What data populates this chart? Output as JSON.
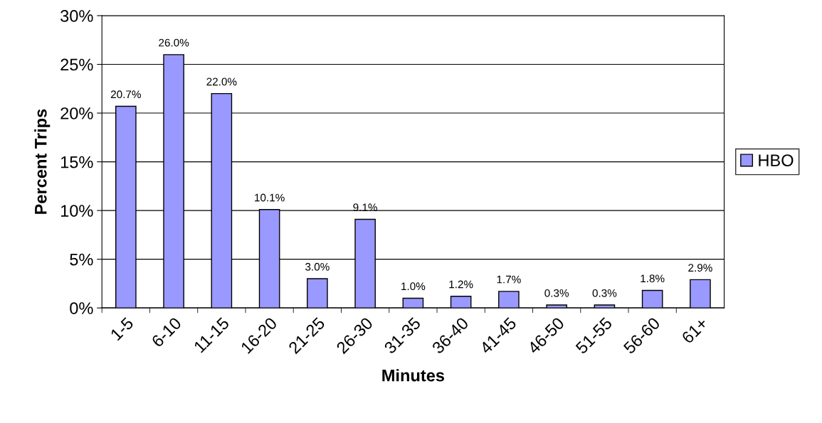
{
  "chart_data": {
    "type": "bar",
    "xlabel": "Minutes",
    "ylabel": "Percent Trips",
    "categories": [
      "1-5",
      "6-10",
      "11-15",
      "16-20",
      "21-25",
      "26-30",
      "31-35",
      "36-40",
      "41-45",
      "46-50",
      "51-55",
      "56-60",
      "61+"
    ],
    "series": [
      {
        "name": "HBO",
        "color": "#9999ff",
        "values": [
          20.7,
          26.0,
          22.0,
          10.1,
          3.0,
          9.1,
          1.0,
          1.2,
          1.7,
          0.3,
          0.3,
          1.8,
          2.9
        ],
        "value_labels": [
          "20.7%",
          "26.0%",
          "22.0%",
          "10.1%",
          "3.0%",
          "9.1%",
          "1.0%",
          "1.2%",
          "1.7%",
          "0.3%",
          "0.3%",
          "1.8%",
          "2.9%"
        ]
      }
    ],
    "ylim": [
      0,
      30
    ],
    "yticks": [
      {
        "value": 0,
        "label": "0%"
      },
      {
        "value": 5,
        "label": "5%"
      },
      {
        "value": 10,
        "label": "10%"
      },
      {
        "value": 15,
        "label": "15%"
      },
      {
        "value": 20,
        "label": "20%"
      },
      {
        "value": 25,
        "label": "25%"
      },
      {
        "value": 30,
        "label": "30%"
      }
    ],
    "grid": "y",
    "legend": "right"
  }
}
